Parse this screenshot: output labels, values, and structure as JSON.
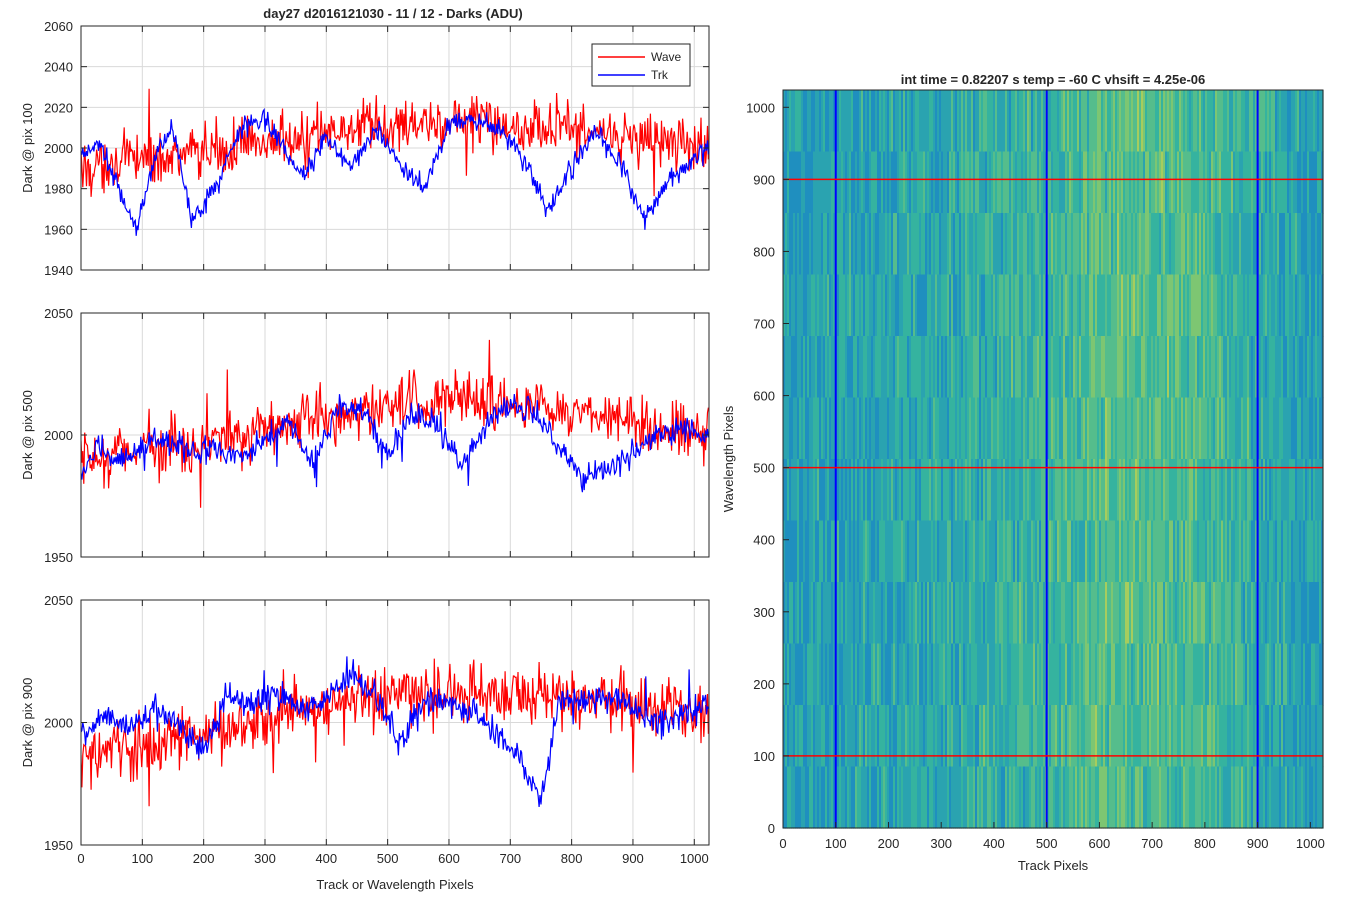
{
  "figure_title": "day27 d2016121030 - 11 / 12 - Darks (ADU)",
  "colors": {
    "wave": "#ff0000",
    "trk": "#0000ff",
    "grid": "#d9d9d9",
    "axis": "#262626"
  },
  "legend": {
    "placement": "top-right",
    "entries": [
      "Wave",
      "Trk"
    ]
  },
  "chart_data": [
    {
      "type": "line",
      "title": "",
      "xlabel": "",
      "ylabel": "Dark @ pix 100",
      "xlim": [
        0,
        1024
      ],
      "ylim": [
        1940,
        2060
      ],
      "xticks": [
        0,
        100,
        200,
        300,
        400,
        500,
        600,
        700,
        800,
        900,
        1000
      ],
      "yticks": [
        1940,
        1960,
        1980,
        2000,
        2020,
        2040,
        2060
      ],
      "grid": true,
      "series": [
        {
          "name": "Wave",
          "color": "#ff0000",
          "x": [
            0,
            50,
            100,
            150,
            200,
            250,
            300,
            350,
            400,
            450,
            500,
            550,
            600,
            650,
            700,
            750,
            800,
            850,
            900,
            950,
            1024
          ],
          "values": [
            1990,
            1992,
            1995,
            1997,
            1998,
            2000,
            2002,
            2004,
            2007,
            2009,
            2011,
            2012,
            2013,
            2013,
            2012,
            2011,
            2009,
            2007,
            2005,
            2002,
            2001
          ]
        },
        {
          "name": "Trk",
          "color": "#0000ff",
          "x": [
            0,
            30,
            60,
            90,
            120,
            150,
            180,
            220,
            260,
            300,
            330,
            360,
            400,
            440,
            480,
            520,
            560,
            600,
            640,
            680,
            720,
            760,
            800,
            840,
            880,
            920,
            960,
            1000,
            1024
          ],
          "values": [
            1995,
            2003,
            1980,
            1960,
            1995,
            2010,
            1965,
            1980,
            2010,
            2015,
            2000,
            1985,
            2005,
            1990,
            2010,
            1992,
            1980,
            2012,
            2015,
            2010,
            1998,
            1968,
            1990,
            2008,
            1992,
            1965,
            1985,
            1995,
            2000
          ]
        }
      ]
    },
    {
      "type": "line",
      "title": "",
      "xlabel": "",
      "ylabel": "Dark @ pix 500",
      "xlim": [
        0,
        1024
      ],
      "ylim": [
        1950,
        2050
      ],
      "xticks": [
        0,
        100,
        200,
        300,
        400,
        500,
        600,
        700,
        800,
        900,
        1000
      ],
      "yticks": [
        1950,
        2000,
        2050
      ],
      "grid": true,
      "series": [
        {
          "name": "Wave",
          "color": "#ff0000",
          "x": [
            0,
            50,
            100,
            150,
            200,
            250,
            300,
            350,
            400,
            450,
            500,
            550,
            600,
            650,
            700,
            750,
            800,
            850,
            900,
            950,
            1024
          ],
          "values": [
            1988,
            1992,
            1995,
            1996,
            1998,
            2000,
            2003,
            2006,
            2008,
            2009,
            2011,
            2013,
            2014,
            2013,
            2012,
            2011,
            2009,
            2007,
            2005,
            2003,
            2001
          ]
        },
        {
          "name": "Trk",
          "color": "#0000ff",
          "x": [
            0,
            30,
            60,
            100,
            140,
            180,
            220,
            260,
            300,
            340,
            380,
            420,
            460,
            500,
            540,
            580,
            620,
            660,
            700,
            740,
            780,
            820,
            860,
            900,
            940,
            980,
            1024
          ],
          "values": [
            1985,
            1995,
            1988,
            1996,
            1998,
            1993,
            1995,
            1990,
            1998,
            2005,
            1988,
            2012,
            2010,
            1992,
            2008,
            2005,
            1988,
            2005,
            2012,
            2010,
            1995,
            1982,
            1985,
            1992,
            2000,
            2003,
            1998
          ]
        }
      ]
    },
    {
      "type": "line",
      "title": "",
      "xlabel": "Track or Wavelength Pixels",
      "ylabel": "Dark @ pix 900",
      "xlim": [
        0,
        1024
      ],
      "ylim": [
        1950,
        2050
      ],
      "xticks": [
        0,
        100,
        200,
        300,
        400,
        500,
        600,
        700,
        800,
        900,
        1000
      ],
      "yticks": [
        1950,
        2000,
        2050
      ],
      "grid": true,
      "series": [
        {
          "name": "Wave",
          "color": "#ff0000",
          "x": [
            0,
            50,
            100,
            150,
            200,
            250,
            300,
            350,
            400,
            450,
            500,
            550,
            600,
            650,
            700,
            750,
            800,
            850,
            900,
            950,
            1024
          ],
          "values": [
            1985,
            1988,
            1990,
            1993,
            1995,
            1998,
            2002,
            2005,
            2007,
            2009,
            2010,
            2011,
            2012,
            2012,
            2012,
            2011,
            2010,
            2009,
            2007,
            2005,
            2003
          ]
        },
        {
          "name": "Trk",
          "color": "#0000ff",
          "x": [
            0,
            40,
            80,
            120,
            160,
            200,
            240,
            280,
            320,
            360,
            400,
            440,
            480,
            520,
            560,
            600,
            640,
            680,
            720,
            750,
            780,
            820,
            860,
            900,
            940,
            980,
            1024
          ],
          "values": [
            1995,
            2002,
            1998,
            2005,
            2000,
            1990,
            2010,
            2008,
            2012,
            2005,
            2010,
            2018,
            2012,
            1990,
            2010,
            2008,
            2005,
            1995,
            1985,
            1965,
            2010,
            2008,
            2010,
            2006,
            2000,
            2003,
            2008
          ]
        }
      ]
    },
    {
      "type": "heatmap",
      "title": "int time = 0.82207 s   temp = -60 C   vhsift = 4.25e-06",
      "xlabel": "Track Pixels",
      "ylabel": "Wavelength Pixels",
      "xlim": [
        0,
        1024
      ],
      "ylim": [
        0,
        1024
      ],
      "xticks": [
        0,
        100,
        200,
        300,
        400,
        500,
        600,
        700,
        800,
        900,
        1000
      ],
      "yticks": [
        0,
        100,
        200,
        300,
        400,
        500,
        600,
        700,
        800,
        900,
        1000
      ],
      "colormap": [
        "#1f8fbf",
        "#2aa3b0",
        "#35b39f",
        "#55bd8c",
        "#7dc672",
        "#a6cd5e"
      ],
      "column_profile": {
        "x": [
          0,
          100,
          200,
          300,
          400,
          500,
          600,
          700,
          800,
          900,
          1000,
          1024
        ],
        "level": [
          0.15,
          0.25,
          0.28,
          0.32,
          0.38,
          0.45,
          0.55,
          0.58,
          0.52,
          0.35,
          0.2,
          0.15
        ]
      },
      "vertical_lines": {
        "color": "#0000ff",
        "x": [
          100,
          500,
          900
        ]
      },
      "horizontal_lines": {
        "color": "#ff0000",
        "y": [
          100,
          500,
          900
        ]
      }
    }
  ]
}
